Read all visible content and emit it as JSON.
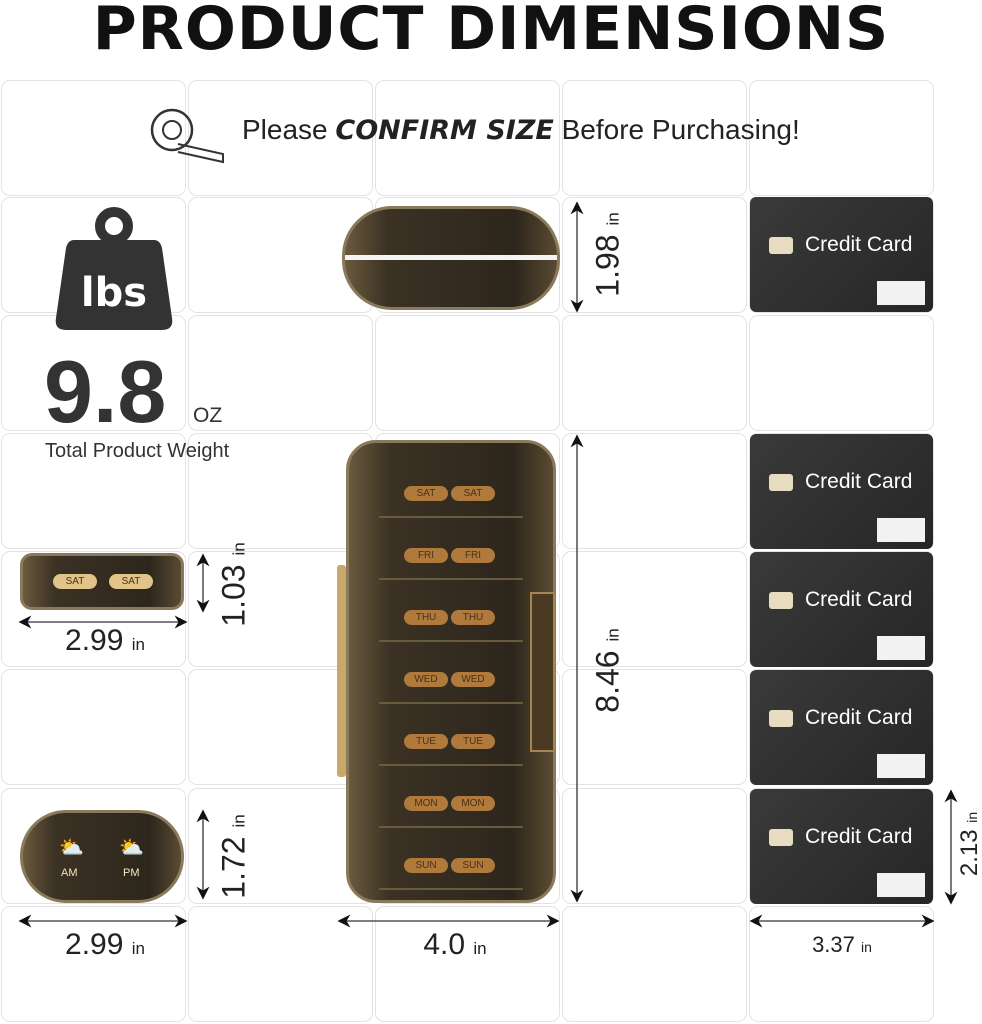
{
  "title": "PRODUCT DIMENSIONS",
  "banner": {
    "prefix": "Please ",
    "emphasis": "CONFIRM SIZE",
    "suffix": " Before Purchasing!",
    "icon": "tape-measure-icon"
  },
  "weight": {
    "icon": "weight-icon",
    "icon_text": "lbs",
    "value": "9.8",
    "unit": "OZ",
    "label": "Total Product Weight"
  },
  "credit_card": {
    "label": "Credit Card"
  },
  "days": [
    "SAT",
    "FRI",
    "THU",
    "WED",
    "TUE",
    "MON",
    "SUN"
  ],
  "compartment": {
    "day": "SAT",
    "am": "AM",
    "pm": "PM"
  },
  "dimensions": {
    "unit": "in",
    "case_height": "1.98",
    "case_length": "8.46",
    "case_width": "4.0",
    "compartment_height": "1.03",
    "compartment_width": "2.99",
    "ampm_height": "1.72",
    "ampm_width": "2.99",
    "card_height": "2.13",
    "card_width": "3.37"
  },
  "colors": {
    "card": "#2e2e2e",
    "case": "#3b3224",
    "label": "#b07a3c"
  }
}
